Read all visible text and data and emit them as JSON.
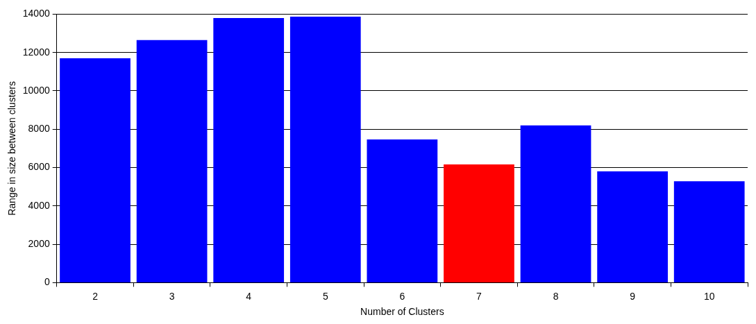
{
  "chart_data": {
    "type": "bar",
    "xlabel": "Number of Clusters",
    "ylabel": "Range in size between clusters",
    "categories": [
      "2",
      "3",
      "4",
      "5",
      "6",
      "7",
      "8",
      "9",
      "10"
    ],
    "values": [
      11700,
      12650,
      13800,
      13870,
      7470,
      6160,
      8200,
      5800,
      5290
    ],
    "colors": [
      "#0000ff",
      "#0000ff",
      "#0000ff",
      "#0000ff",
      "#0000ff",
      "#ff0000",
      "#0000ff",
      "#0000ff",
      "#0000ff"
    ],
    "ylim": [
      0,
      14000
    ],
    "yticks": [
      0,
      2000,
      4000,
      6000,
      8000,
      10000,
      12000,
      14000
    ],
    "grid": "y",
    "legend": false
  }
}
